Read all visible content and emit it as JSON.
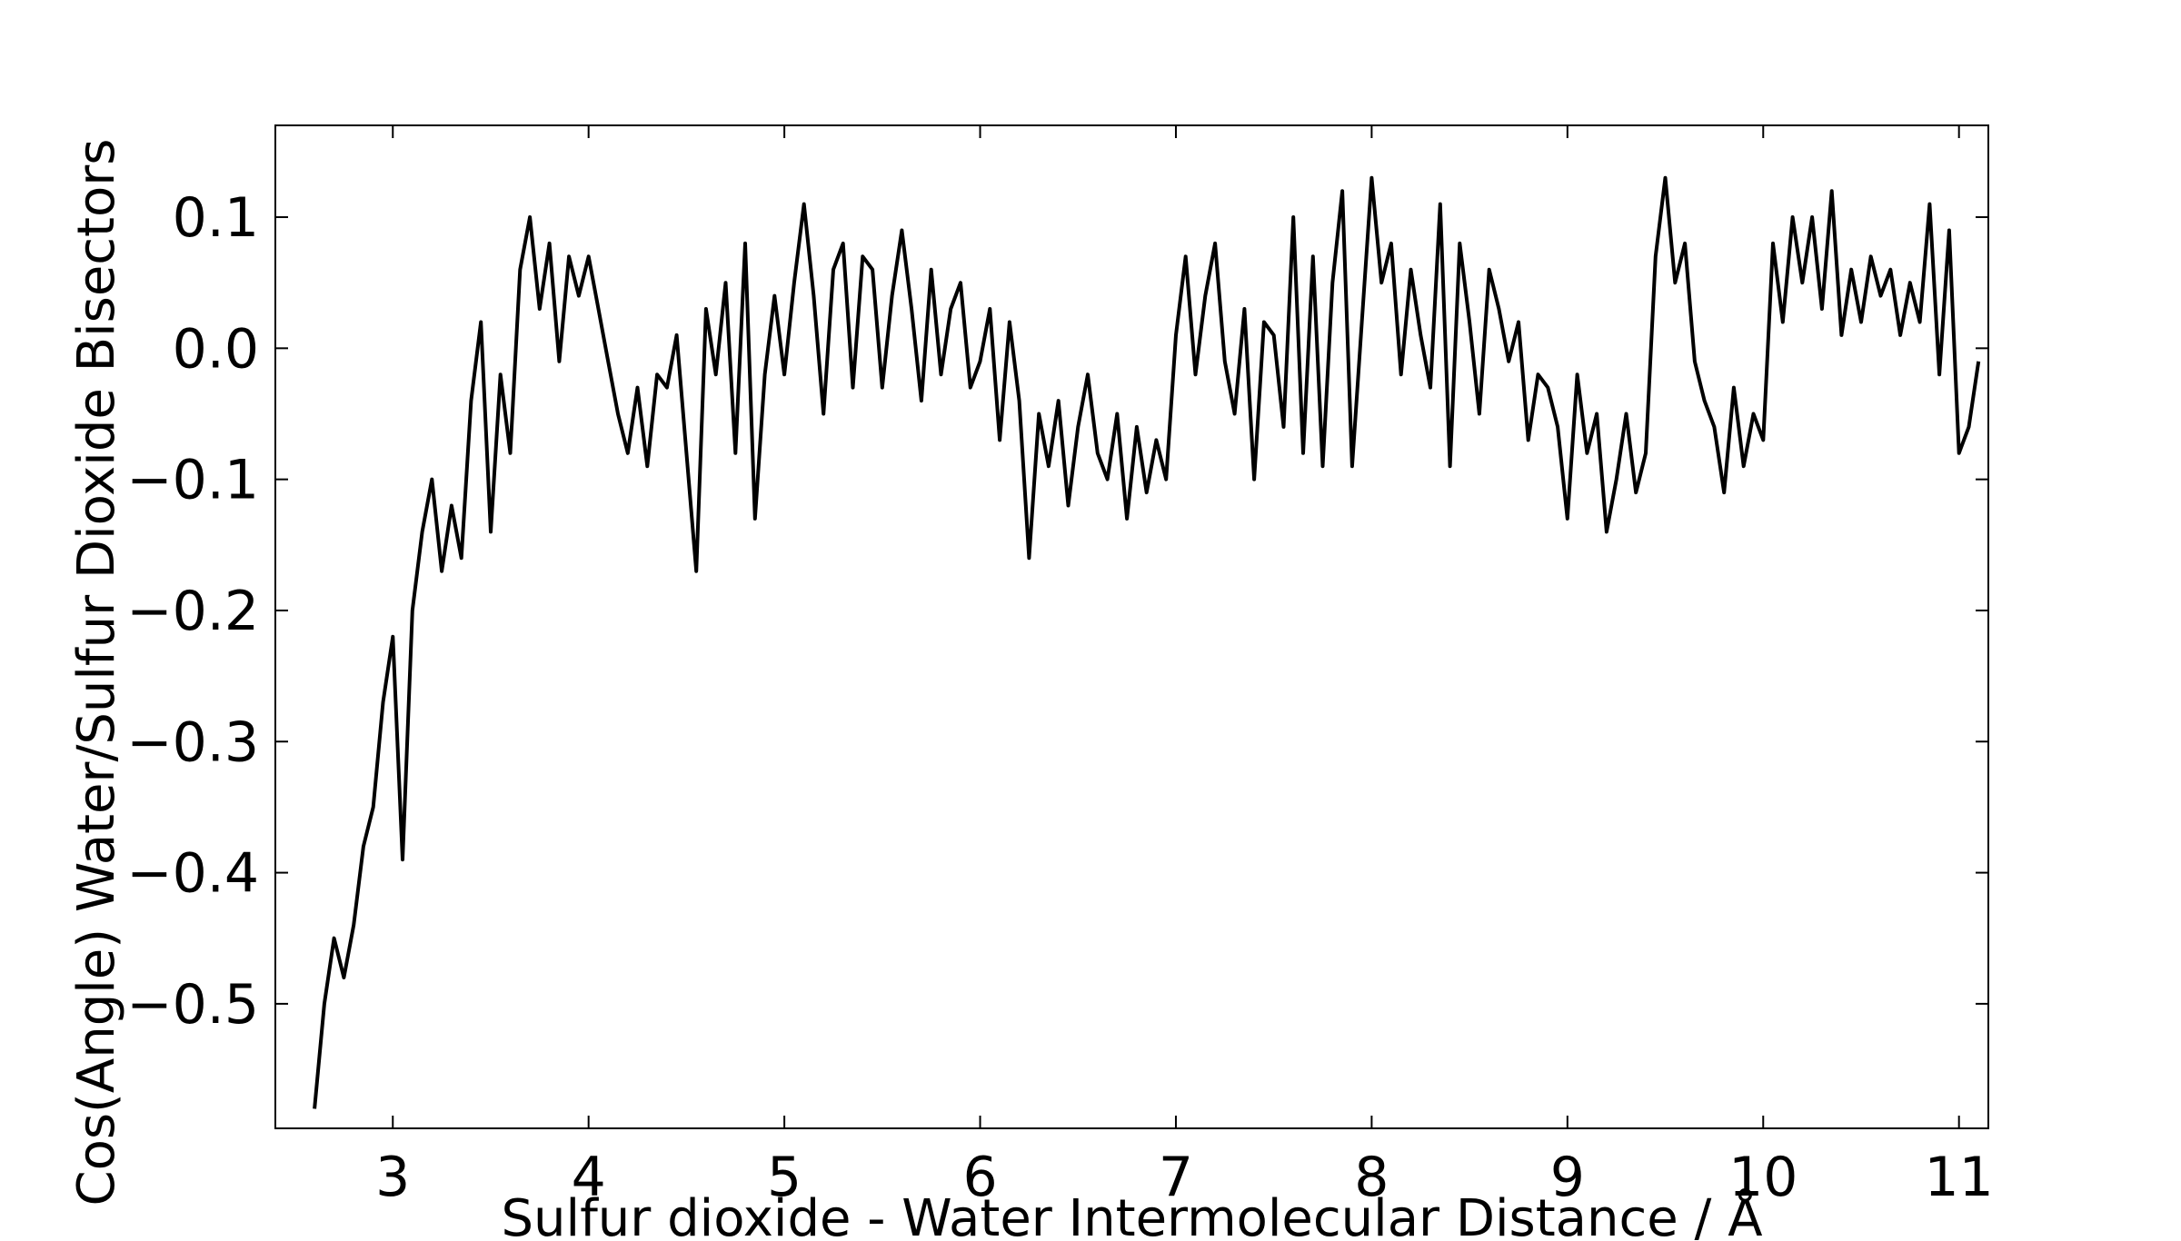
{
  "chart_data": {
    "type": "line",
    "title": "",
    "xlabel": "Sulfur dioxide - Water Intermolecular Distance / Å",
    "ylabel": "Cos(Angle) Water/Sulfur Dioxide Bisectors",
    "xlim": [
      2.4,
      11.15
    ],
    "ylim": [
      -0.595,
      0.17
    ],
    "xticks": [
      3,
      4,
      5,
      6,
      7,
      8,
      9,
      10,
      11
    ],
    "yticks": [
      0.1,
      0.0,
      -0.1,
      -0.2,
      -0.3,
      -0.4,
      -0.5
    ],
    "xtick_labels": [
      "3",
      "4",
      "5",
      "6",
      "7",
      "8",
      "9",
      "10",
      "11"
    ],
    "ytick_labels": [
      "0.1",
      "0.0",
      "−0.1",
      "−0.2",
      "−0.3",
      "−0.4",
      "−0.5"
    ],
    "grid": false,
    "legend": "none",
    "line_color": "#000000",
    "series": [
      {
        "x": [
          2.6,
          2.65,
          2.7,
          2.75,
          2.8,
          2.85,
          2.9,
          2.95,
          3.0,
          3.05,
          3.1,
          3.15,
          3.2,
          3.25,
          3.3,
          3.35,
          3.4,
          3.45,
          3.5,
          3.55,
          3.6,
          3.65,
          3.7,
          3.75,
          3.8,
          3.85,
          3.9,
          3.95,
          4.0,
          4.05,
          4.1,
          4.15,
          4.2,
          4.25,
          4.3,
          4.35,
          4.4,
          4.45,
          4.5,
          4.55,
          4.6,
          4.65,
          4.7,
          4.75,
          4.8,
          4.85,
          4.9,
          4.95,
          5.0,
          5.05,
          5.1,
          5.15,
          5.2,
          5.25,
          5.3,
          5.35,
          5.4,
          5.45,
          5.5,
          5.55,
          5.6,
          5.65,
          5.7,
          5.75,
          5.8,
          5.85,
          5.9,
          5.95,
          6.0,
          6.05,
          6.1,
          6.15,
          6.2,
          6.25,
          6.3,
          6.35,
          6.4,
          6.45,
          6.5,
          6.55,
          6.6,
          6.65,
          6.7,
          6.75,
          6.8,
          6.85,
          6.9,
          6.95,
          7.0,
          7.05,
          7.1,
          7.15,
          7.2,
          7.25,
          7.3,
          7.35,
          7.4,
          7.45,
          7.5,
          7.55,
          7.6,
          7.65,
          7.7,
          7.75,
          7.8,
          7.85,
          7.9,
          7.95,
          8.0,
          8.05,
          8.1,
          8.15,
          8.2,
          8.25,
          8.3,
          8.35,
          8.4,
          8.45,
          8.5,
          8.55,
          8.6,
          8.65,
          8.7,
          8.75,
          8.8,
          8.85,
          8.9,
          8.95,
          9.0,
          9.05,
          9.1,
          9.15,
          9.2,
          9.25,
          9.3,
          9.35,
          9.4,
          9.45,
          9.5,
          9.55,
          9.6,
          9.65,
          9.7,
          9.75,
          9.8,
          9.85,
          9.9,
          9.95,
          10.0,
          10.05,
          10.1,
          10.15,
          10.2,
          10.25,
          10.3,
          10.35,
          10.4,
          10.45,
          10.5,
          10.55,
          10.6,
          10.65,
          10.7,
          10.75,
          10.8,
          10.85,
          10.9,
          10.95,
          11.0,
          11.05,
          11.1
        ],
        "y": [
          -0.58,
          -0.5,
          -0.45,
          -0.48,
          -0.44,
          -0.38,
          -0.35,
          -0.27,
          -0.22,
          -0.39,
          -0.2,
          -0.14,
          -0.1,
          -0.17,
          -0.12,
          -0.16,
          -0.04,
          0.02,
          -0.14,
          -0.02,
          -0.08,
          0.06,
          0.1,
          0.03,
          0.08,
          -0.01,
          0.07,
          0.04,
          0.07,
          0.03,
          -0.01,
          -0.05,
          -0.08,
          -0.03,
          -0.09,
          -0.02,
          -0.03,
          0.01,
          -0.08,
          -0.17,
          0.03,
          -0.02,
          0.05,
          -0.08,
          0.08,
          -0.13,
          -0.02,
          0.04,
          -0.02,
          0.05,
          0.11,
          0.04,
          -0.05,
          0.06,
          0.08,
          -0.03,
          0.07,
          0.06,
          -0.03,
          0.04,
          0.09,
          0.03,
          -0.04,
          0.06,
          -0.02,
          0.03,
          0.05,
          -0.03,
          -0.01,
          0.03,
          -0.07,
          0.02,
          -0.04,
          -0.16,
          -0.05,
          -0.09,
          -0.04,
          -0.12,
          -0.06,
          -0.02,
          -0.08,
          -0.1,
          -0.05,
          -0.13,
          -0.06,
          -0.11,
          -0.07,
          -0.1,
          0.01,
          0.07,
          -0.02,
          0.04,
          0.08,
          -0.01,
          -0.05,
          0.03,
          -0.1,
          0.02,
          0.01,
          -0.06,
          0.1,
          -0.08,
          0.07,
          -0.09,
          0.05,
          0.12,
          -0.09,
          0.02,
          0.13,
          0.05,
          0.08,
          -0.02,
          0.06,
          0.01,
          -0.03,
          0.11,
          -0.09,
          0.08,
          0.02,
          -0.05,
          0.06,
          0.03,
          -0.01,
          0.02,
          -0.07,
          -0.02,
          -0.03,
          -0.06,
          -0.13,
          -0.02,
          -0.08,
          -0.05,
          -0.14,
          -0.1,
          -0.05,
          -0.11,
          -0.08,
          0.07,
          0.13,
          0.05,
          0.08,
          -0.01,
          -0.04,
          -0.06,
          -0.11,
          -0.03,
          -0.09,
          -0.05,
          -0.07,
          0.08,
          0.02,
          0.1,
          0.05,
          0.1,
          0.03,
          0.12,
          0.01,
          0.06,
          0.02,
          0.07,
          0.04,
          0.06,
          0.01,
          0.05,
          0.02,
          0.11,
          -0.02,
          0.09,
          -0.08,
          -0.06,
          -0.01
        ]
      }
    ]
  }
}
